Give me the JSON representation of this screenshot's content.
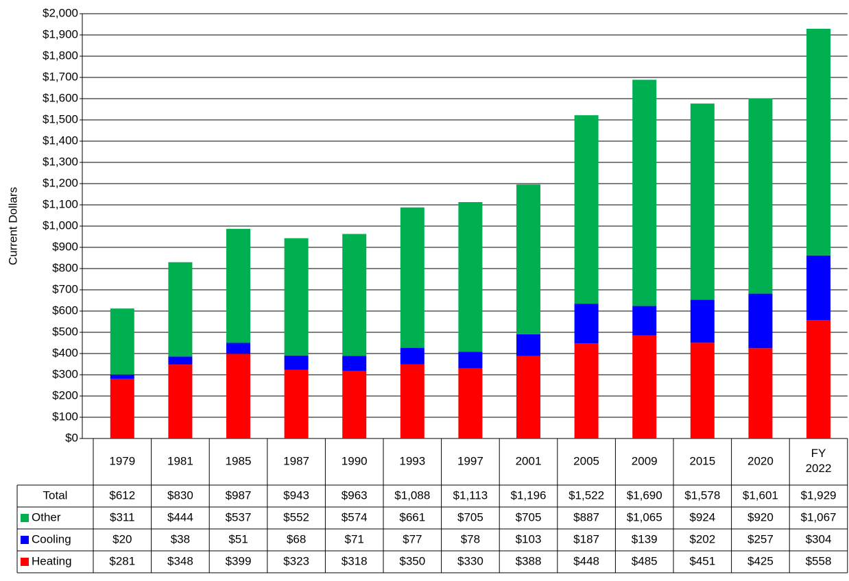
{
  "chart_data": {
    "type": "bar",
    "stacked": true,
    "y_label": "Current Dollars",
    "categories": [
      "1979",
      "1981",
      "1985",
      "1987",
      "1990",
      "1993",
      "1997",
      "2001",
      "2005",
      "2009",
      "2015",
      "2020",
      "FY 2022"
    ],
    "series": [
      {
        "name": "Heating",
        "color": "#ff0000",
        "values": [
          281,
          348,
          399,
          323,
          318,
          350,
          330,
          388,
          448,
          485,
          451,
          425,
          558
        ],
        "value_labels": [
          "$281",
          "$348",
          "$399",
          "$323",
          "$318",
          "$350",
          "$330",
          "$388",
          "$448",
          "$485",
          "$451",
          "$425",
          "$558"
        ]
      },
      {
        "name": "Cooling",
        "color": "#0000ff",
        "values": [
          20,
          38,
          51,
          68,
          71,
          77,
          78,
          103,
          187,
          139,
          202,
          257,
          304
        ],
        "value_labels": [
          "$20",
          "$38",
          "$51",
          "$68",
          "$71",
          "$77",
          "$78",
          "$103",
          "$187",
          "$139",
          "$202",
          "$257",
          "$304"
        ]
      },
      {
        "name": "Other",
        "color": "#00b050",
        "values": [
          311,
          444,
          537,
          552,
          574,
          661,
          705,
          705,
          887,
          1065,
          924,
          920,
          1067
        ],
        "value_labels": [
          "$311",
          "$444",
          "$537",
          "$552",
          "$574",
          "$661",
          "$705",
          "$705",
          "$887",
          "$1,065",
          "$924",
          "$920",
          "$1,067"
        ]
      }
    ],
    "totals_name": "Total",
    "totals": [
      612,
      830,
      987,
      943,
      963,
      1088,
      1113,
      1196,
      1522,
      1690,
      1578,
      1601,
      1929
    ],
    "totals_value_labels": [
      "$612",
      "$830",
      "$987",
      "$943",
      "$963",
      "$1,088",
      "$1,113",
      "$1,196",
      "$1,522",
      "$1,690",
      "$1,578",
      "$1,601",
      "$1,929"
    ],
    "ylim": [
      0,
      2000
    ],
    "yticks": [
      {
        "value": 0,
        "label": "$0"
      },
      {
        "value": 100,
        "label": "$100"
      },
      {
        "value": 200,
        "label": "$200"
      },
      {
        "value": 300,
        "label": "$300"
      },
      {
        "value": 400,
        "label": "$400"
      },
      {
        "value": 500,
        "label": "$500"
      },
      {
        "value": 600,
        "label": "$600"
      },
      {
        "value": 700,
        "label": "$700"
      },
      {
        "value": 800,
        "label": "$800"
      },
      {
        "value": 900,
        "label": "$900"
      },
      {
        "value": 1000,
        "label": "$1,000"
      },
      {
        "value": 1100,
        "label": "$1,100"
      },
      {
        "value": 1200,
        "label": "$1,200"
      },
      {
        "value": 1300,
        "label": "$1,300"
      },
      {
        "value": 1400,
        "label": "$1,400"
      },
      {
        "value": 1500,
        "label": "$1,500"
      },
      {
        "value": 1600,
        "label": "$1,600"
      },
      {
        "value": 1700,
        "label": "$1,700"
      },
      {
        "value": 1800,
        "label": "$1,800"
      },
      {
        "value": 1900,
        "label": "$1,900"
      },
      {
        "value": 2000,
        "label": "$2,000"
      }
    ],
    "grid": true
  }
}
